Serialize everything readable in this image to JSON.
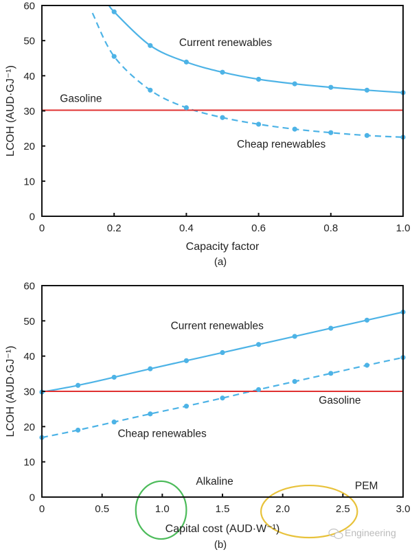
{
  "chart_data": [
    {
      "type": "line",
      "panel_label": "(a)",
      "title": "",
      "xlabel": "Capacity factor",
      "ylabel": "LCOH (AUD·GJ⁻¹)",
      "xlim": [
        0,
        1.0
      ],
      "ylim": [
        0,
        60
      ],
      "xticks": [
        0,
        0.2,
        0.4,
        0.6,
        0.8,
        1.0
      ],
      "xtick_labels": [
        "0",
        "0.2",
        "0.4",
        "0.6",
        "0.8",
        "1.0"
      ],
      "yticks": [
        0,
        10,
        20,
        30,
        40,
        50,
        60
      ],
      "ytick_labels": [
        "0",
        "10",
        "20",
        "30",
        "40",
        "50",
        "60"
      ],
      "grid": false,
      "series": [
        {
          "name": "Current renewables",
          "style": "solid",
          "color": "#4db3e6",
          "x": [
            0.2,
            0.3,
            0.4,
            0.5,
            0.6,
            0.7,
            0.8,
            0.9,
            1.0
          ],
          "y": [
            58.2,
            48.6,
            43.9,
            41.0,
            39.0,
            37.7,
            36.7,
            35.9,
            35.2
          ],
          "extends_above_top_to_x": 0.185
        },
        {
          "name": "Cheap renewables",
          "style": "dashed",
          "color": "#4db3e6",
          "x": [
            0.2,
            0.3,
            0.4,
            0.5,
            0.6,
            0.7,
            0.8,
            0.9,
            1.0
          ],
          "y": [
            45.5,
            35.9,
            30.9,
            28.1,
            26.2,
            24.8,
            23.8,
            23.0,
            22.5
          ],
          "extends_above_top_to_x": 0.14
        },
        {
          "name": "Gasoline",
          "style": "solid",
          "color": "#e03030",
          "x": [
            0,
            1.0
          ],
          "y": [
            30.2,
            30.2
          ]
        }
      ],
      "annotations": [
        {
          "text": "Current renewables",
          "x": 0.38,
          "y": 48.5
        },
        {
          "text": "Gasoline",
          "x": 0.05,
          "y": 32.5
        },
        {
          "text": "Cheap renewables",
          "x": 0.54,
          "y": 19.5
        }
      ]
    },
    {
      "type": "line",
      "panel_label": "(b)",
      "title": "",
      "xlabel": "Capital cost (AUD·W⁻¹)",
      "ylabel": "LCOH (AUD·GJ⁻¹)",
      "xlim": [
        0,
        3.0
      ],
      "ylim": [
        0,
        60
      ],
      "xticks": [
        0,
        0.5,
        1.0,
        1.5,
        2.0,
        2.5,
        3.0
      ],
      "xtick_labels": [
        "0",
        "0.5",
        "1.0",
        "1.5",
        "2.0",
        "2.5",
        "3.0"
      ],
      "yticks": [
        0,
        10,
        20,
        30,
        40,
        50,
        60
      ],
      "ytick_labels": [
        "0",
        "10",
        "20",
        "30",
        "40",
        "50",
        "60"
      ],
      "grid": false,
      "series": [
        {
          "name": "Current renewables",
          "style": "solid",
          "color": "#4db3e6",
          "x": [
            0,
            0.3,
            0.6,
            0.9,
            1.2,
            1.5,
            1.8,
            2.1,
            2.4,
            2.7,
            3.0
          ],
          "y": [
            29.8,
            31.7,
            34.0,
            36.4,
            38.7,
            41.0,
            43.3,
            45.6,
            47.9,
            50.2,
            52.5
          ]
        },
        {
          "name": "Cheap renewables",
          "style": "dashed",
          "color": "#4db3e6",
          "x": [
            0,
            0.3,
            0.6,
            0.9,
            1.2,
            1.5,
            1.8,
            2.1,
            2.4,
            2.7,
            3.0
          ],
          "y": [
            16.9,
            19.0,
            21.3,
            23.6,
            25.8,
            28.1,
            30.5,
            32.8,
            35.1,
            37.4,
            39.6
          ]
        },
        {
          "name": "Gasoline",
          "style": "solid",
          "color": "#e03030",
          "x": [
            0,
            3.0
          ],
          "y": [
            30.0,
            30.0
          ]
        }
      ],
      "annotations": [
        {
          "text": "Current renewables",
          "x": 1.07,
          "y": 47.6
        },
        {
          "text": "Gasoline",
          "x": 2.3,
          "y": 26.5
        },
        {
          "text": "Cheap renewables",
          "x": 0.63,
          "y": 17.0
        },
        {
          "text": "Alkaline",
          "x": 1.28,
          "y": 3.5
        },
        {
          "text": "PEM",
          "x": 2.6,
          "y": 2.2
        }
      ],
      "highlight_regions": [
        {
          "label": "Alkaline",
          "color": "#4cbb5a",
          "shape": "circle",
          "center_x": 0.99,
          "center_y": -3.7,
          "x_half_width": 0.21,
          "y_half_height": 8.2
        },
        {
          "label": "PEM",
          "color": "#e8c23a",
          "shape": "ellipse",
          "center_x": 2.22,
          "center_y": -4.1,
          "x_half_width": 0.4,
          "y_half_height": 7.4
        }
      ]
    }
  ],
  "watermark": {
    "text": "Engineering",
    "icon": "wechat-icon"
  }
}
